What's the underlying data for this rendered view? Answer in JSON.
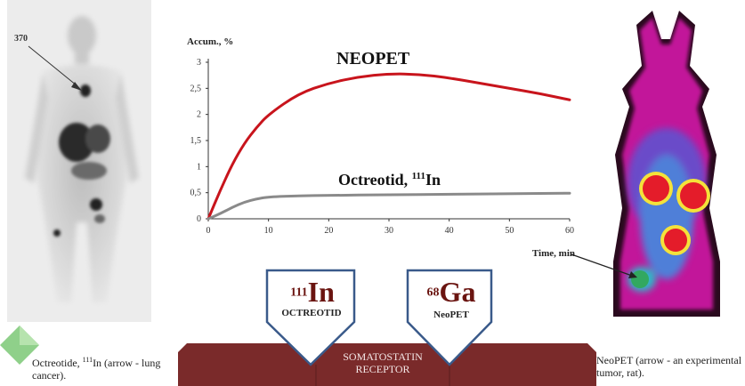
{
  "left_caption": {
    "prefix": "Octreotide, ",
    "sup": "111",
    "rest": "In (arrow - lung cancer)."
  },
  "right_caption": {
    "text": "NeoPET (arrow - an experimental tumor, rat)."
  },
  "scan_left": {
    "marker": "370"
  },
  "colors": {
    "neopet": "#c8141c",
    "octreotid": "#8a8a8a",
    "receptor": "#7a2a2a",
    "pentagon_border": "#3a5a8a"
  },
  "chart_data": {
    "type": "line",
    "ylabel": "Accum., %",
    "xlabel": "Time, min",
    "xlim": [
      0,
      60
    ],
    "ylim": [
      0,
      3
    ],
    "x_ticks": [
      "0",
      "10",
      "20",
      "30",
      "40",
      "50",
      "60"
    ],
    "y_ticks": [
      "0",
      "0,5",
      "1",
      "1,5",
      "2",
      "2,5",
      "3"
    ],
    "grid": false,
    "series": [
      {
        "name": "NEOPET",
        "x": [
          0,
          2,
          4,
          6,
          8,
          10,
          15,
          20,
          25,
          30,
          35,
          40,
          45,
          50,
          55,
          60
        ],
        "values": [
          0,
          0.55,
          1.05,
          1.45,
          1.75,
          2.0,
          2.4,
          2.6,
          2.72,
          2.78,
          2.77,
          2.7,
          2.6,
          2.5,
          2.4,
          2.28
        ]
      },
      {
        "name_label": "Octreotid, ",
        "name_sup": "111",
        "name_rest": "In",
        "x": [
          0,
          2,
          4,
          6,
          8,
          10,
          15,
          20,
          30,
          40,
          50,
          60
        ],
        "values": [
          0,
          0.1,
          0.22,
          0.32,
          0.38,
          0.42,
          0.44,
          0.45,
          0.46,
          0.47,
          0.48,
          0.49
        ]
      }
    ]
  },
  "diagram": {
    "left_box": {
      "sup": "111",
      "main": "In",
      "sub": "OCTREOTID"
    },
    "right_box": {
      "sup": "68",
      "main": "Ga",
      "sub": "NeoPET"
    },
    "receptor_line1": "SOMATOSTATIN",
    "receptor_line2": "RECEPTOR"
  }
}
